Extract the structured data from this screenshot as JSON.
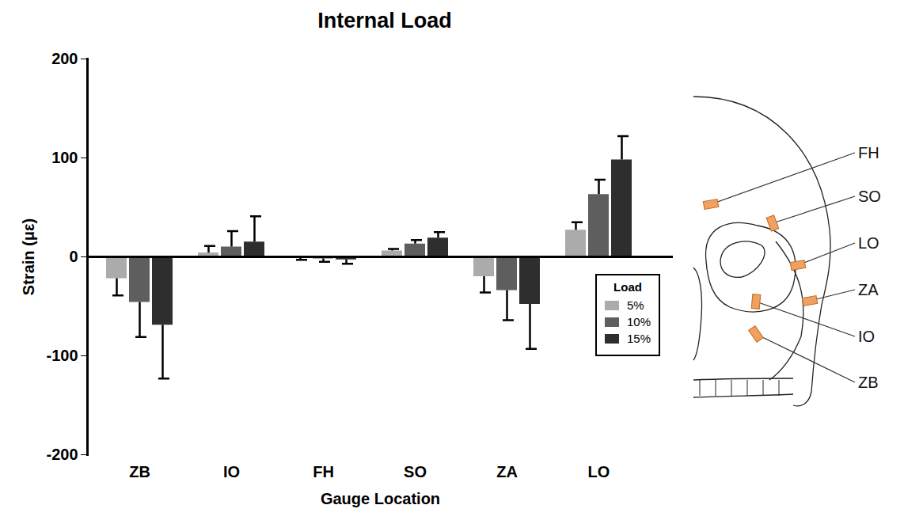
{
  "chart_data": {
    "type": "bar",
    "title": "Internal Load",
    "x_label": "Gauge Location",
    "y_label": "Strain (με)",
    "categories": [
      "ZB",
      "IO",
      "FH",
      "SO",
      "ZA",
      "LO"
    ],
    "series": [
      {
        "name": "5%",
        "color": "#ababab",
        "values": [
          -22,
          4,
          -1,
          6,
          -20,
          27
        ],
        "errors": [
          17,
          7,
          2,
          2,
          16,
          8
        ]
      },
      {
        "name": "10%",
        "color": "#5e5e5e",
        "values": [
          -46,
          10,
          -2,
          13,
          -34,
          63
        ],
        "errors": [
          35,
          16,
          3,
          4,
          30,
          15
        ]
      },
      {
        "name": "15%",
        "color": "#2e2e2e",
        "values": [
          -69,
          15,
          -3,
          19,
          -48,
          98
        ],
        "errors": [
          54,
          26,
          4,
          6,
          45,
          24
        ]
      }
    ],
    "ylim": [
      -200,
      200
    ],
    "yticks": [
      -200,
      -100,
      0,
      100,
      200
    ],
    "legend": "lower right",
    "legend_title": "Load"
  },
  "diagram": {
    "labels": [
      "FH",
      "SO",
      "LO",
      "ZA",
      "IO",
      "ZB"
    ]
  }
}
